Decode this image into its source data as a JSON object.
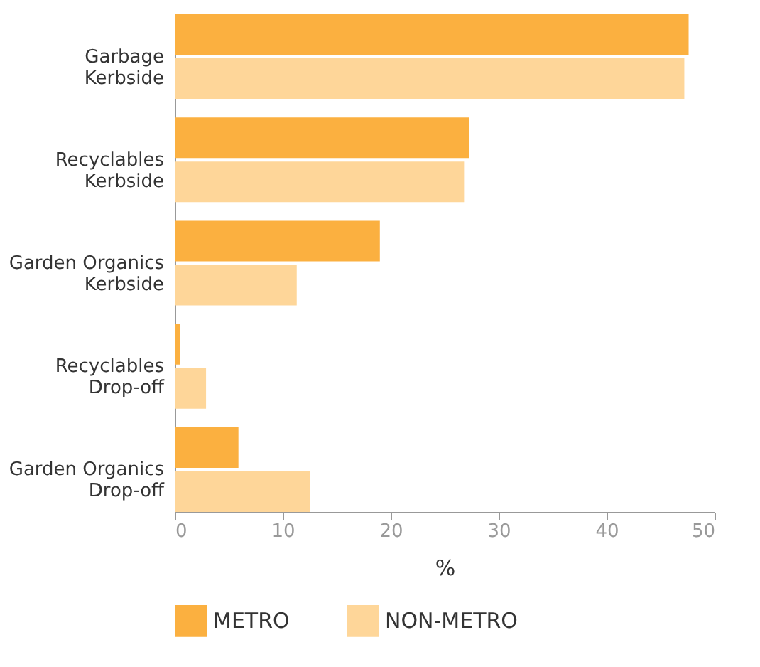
{
  "chart_data": {
    "type": "bar",
    "orientation": "horizontal",
    "categories": [
      "Garbage\nKerbside",
      "Recyclables\nKerbside",
      "Garden Organics\nKerbside",
      "Recyclables\nDrop-off",
      "Garden Organics\nDrop-off"
    ],
    "series": [
      {
        "name": "METRO",
        "color": "#fbb040",
        "values": [
          47.6,
          27.3,
          19.0,
          0.5,
          5.9
        ]
      },
      {
        "name": "NON-METRO",
        "color": "#fed699",
        "values": [
          47.2,
          26.8,
          11.3,
          2.9,
          12.5
        ]
      }
    ],
    "xlabel": "%",
    "xlim": [
      0,
      50
    ],
    "xticks": [
      0,
      10,
      20,
      30,
      40,
      50
    ],
    "grid": false,
    "legend": "bottom"
  }
}
